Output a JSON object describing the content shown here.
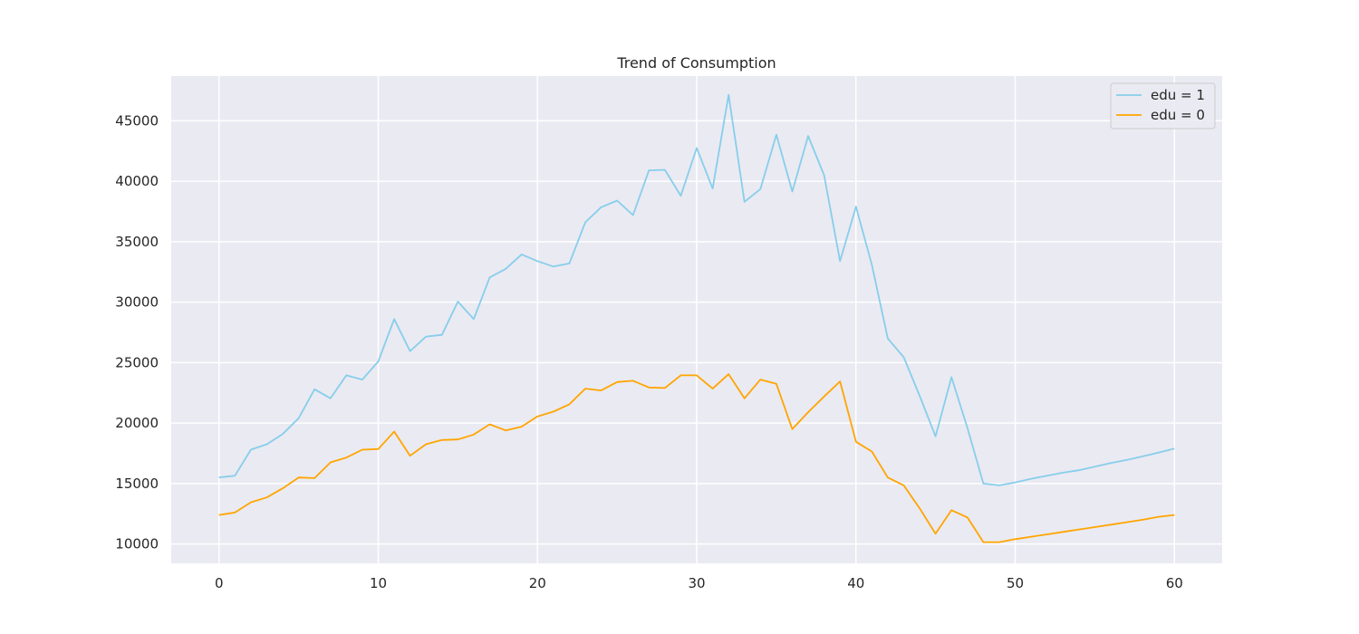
{
  "chart_data": {
    "type": "line",
    "title": "Trend of Consumption",
    "xlabel": "",
    "ylabel": "",
    "xlim": [
      -3,
      63
    ],
    "ylim": [
      8400,
      48700
    ],
    "x_ticks": [
      0,
      10,
      20,
      30,
      40,
      50,
      60
    ],
    "y_ticks": [
      10000,
      15000,
      20000,
      25000,
      30000,
      35000,
      40000,
      45000
    ],
    "grid": true,
    "legend_position": "top-right",
    "x": [
      0,
      1,
      2,
      3,
      4,
      5,
      6,
      7,
      8,
      9,
      10,
      11,
      12,
      13,
      14,
      15,
      16,
      17,
      18,
      19,
      20,
      21,
      22,
      23,
      24,
      25,
      26,
      27,
      28,
      29,
      30,
      31,
      32,
      33,
      34,
      35,
      36,
      37,
      38,
      39,
      40,
      41,
      42,
      43,
      44,
      45,
      46,
      47,
      48,
      49,
      50,
      51,
      52,
      53,
      54,
      55,
      56,
      57,
      58,
      59,
      60
    ],
    "series": [
      {
        "name": "edu = 1",
        "color": "#87ceeb",
        "values": [
          15500,
          15650,
          17800,
          18250,
          19100,
          20400,
          22800,
          22050,
          23950,
          23600,
          25100,
          28600,
          25950,
          27150,
          27300,
          30050,
          28600,
          32050,
          32750,
          33950,
          33400,
          32950,
          33200,
          36600,
          37850,
          38400,
          37200,
          40900,
          40950,
          38800,
          42750,
          39400,
          47150,
          38300,
          39350,
          43850,
          39150,
          43750,
          40500,
          33400,
          37900,
          33100,
          27000,
          25450,
          22250,
          18900,
          23800,
          19600,
          15000,
          14850,
          15100,
          15400,
          15650,
          15900,
          16100,
          16400,
          16700,
          16950,
          17250,
          17550,
          17900
        ]
      },
      {
        "name": "edu = 0",
        "color": "#ffa500",
        "values": [
          12400,
          12600,
          13450,
          13850,
          14600,
          15500,
          15450,
          16750,
          17150,
          17800,
          17850,
          19300,
          17300,
          18250,
          18600,
          18650,
          19050,
          19900,
          19400,
          19700,
          20550,
          20950,
          21550,
          22850,
          22700,
          23400,
          23500,
          22950,
          22900,
          23950,
          23950,
          22850,
          24050,
          22050,
          23600,
          23250,
          19500,
          20900,
          22200,
          23450,
          18450,
          17650,
          15500,
          14850,
          12950,
          10850,
          12800,
          12200,
          10150,
          10150,
          10400,
          10600,
          10800,
          11000,
          11200,
          11400,
          11600,
          11800,
          12000,
          12250,
          12400
        ]
      }
    ]
  }
}
